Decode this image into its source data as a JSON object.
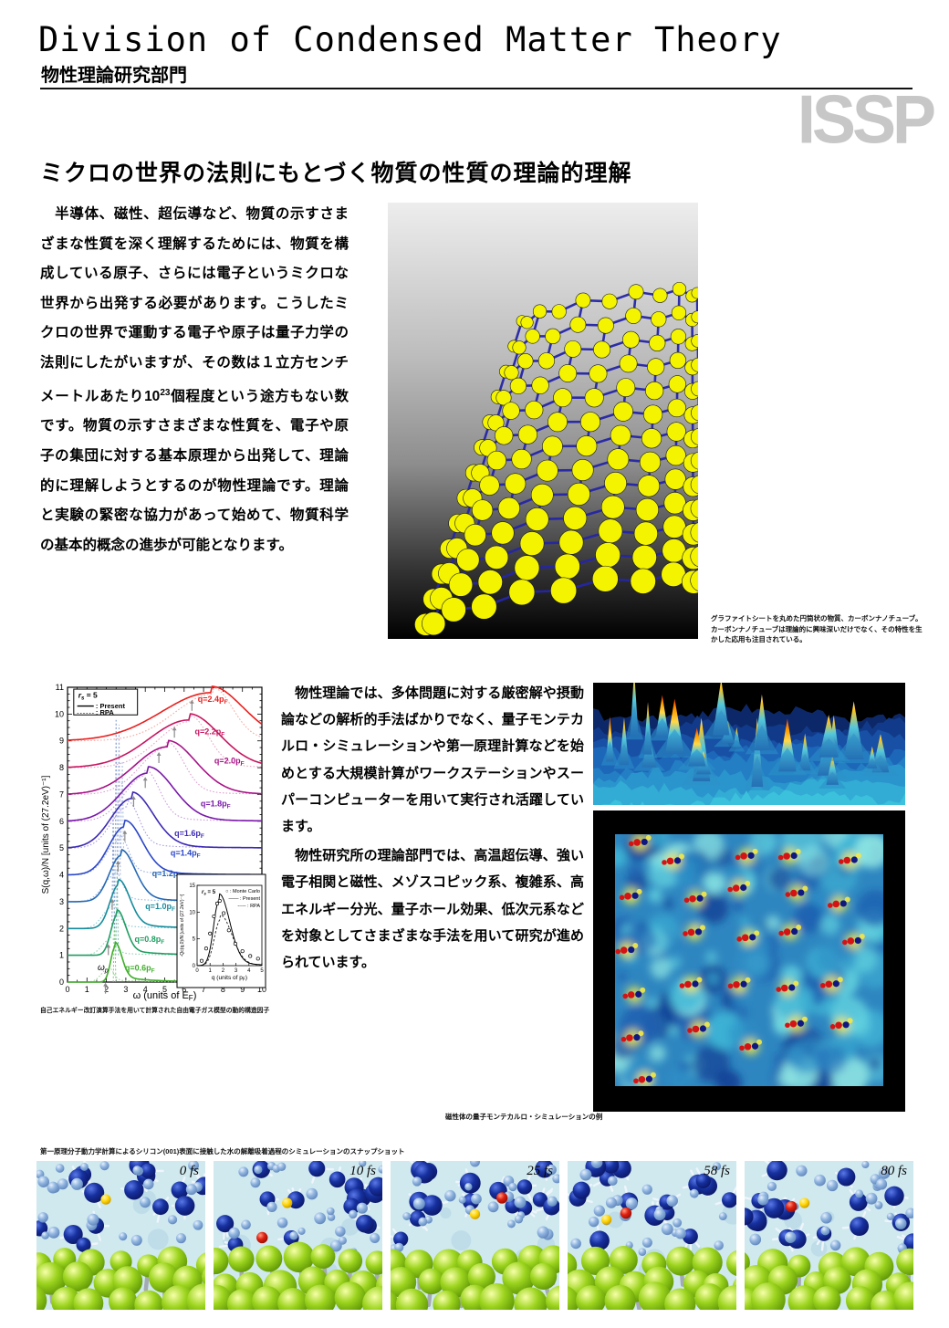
{
  "header": {
    "title_en": "Division of Condensed Matter Theory",
    "title_ja": "物性理論研究部門",
    "watermark": "ISSP"
  },
  "section_heading": "ミクロの世界の法則にもとづく物質の性質の理論的理解",
  "intro": {
    "part1": "　半導体、磁性、超伝導など、物質の示すさまざまな性質を深く理解するためには、物質を構成している原子、さらには電子というミクロな世界から出発する必要があります。こうしたミクロの世界で運動する電子や原子は量子力学の法則にしたがいますが、その数は１立方センチメートルあたり10",
    "sup": "23",
    "part2": "個程度という途方もない数です。物質の示すさまざまな性質を、電子や原子の集団に対する基本原理から出発して、理論的に理解しようとするのが物性理論です。理論と実験の緊密な協力があって始めて、物質科学の基本的概念の進歩が可能となります。"
  },
  "body2": {
    "p1": "　物性理論では、多体問題に対する厳密解や摂動論などの解析的手法ばかりでなく、量子モンテカルロ・シミュレーションや第一原理計算などを始めとする大規模計算がワークステーションやスーパーコンピューターを用いて実行され活躍しています。",
    "p2": "　物性研究所の理論部門では、高温超伝導、強い電子相関と磁性、メゾスコピック系、複雑系、高エネルギー分光、量子ホール効果、低次元系などを対象としてさまざまな手法を用いて研究が進められています。"
  },
  "captions": {
    "nanotube": "グラファイトシートを丸めた円筒状の物質、カーボンナノチューブ。カーボンナノチューブは理論的に興味深いだけでなく、その特性を生かした応用も注目されている。",
    "structure_factor": "自己エネルギー改訂演算手法を用いて計算された自由電子ガス模型の動的構造因子",
    "qmc": "磁性体の量子モンテカルロ・シミュレーションの例",
    "snapshots": "第一原理分子動力学計算によるシリコン(001)表面に接触した水の解離吸着過程のシミュレーションのスナップショット"
  },
  "snapshots": {
    "times": [
      "0 fs",
      "10 fs",
      "25 fs",
      "58 fs",
      "80 fs"
    ]
  },
  "chart_data": [
    {
      "type": "line",
      "xlabel_pre": "ω  (units of E",
      "xlabel_sub": "F",
      "xlabel_post": ")",
      "ylabel": "S(q,ω)/N  [units of (27.2eV)⁻¹]",
      "xlim": [
        0,
        10
      ],
      "ylim": [
        0,
        11
      ],
      "legend": {
        "rs_pre": "r",
        "rs_sub": "s",
        "rs_post": " = 5",
        "present": ": Present",
        "rpa": ": RPA"
      },
      "omega_p_pre": "ω",
      "omega_p_sub": "p",
      "series": [
        {
          "label": "q=0.6p",
          "sub": "F",
          "color": "#3fae2a",
          "rpa_color": "#9fd79a",
          "baseline": 0,
          "peak": 2.45,
          "height": 1.32,
          "wl": 0.32,
          "wr": 0.48,
          "rpa": {
            "peak": 2.1,
            "height": 0.5,
            "wl": 0.5,
            "wr": 0.35
          },
          "label_pos": [
            2.95,
            0.42
          ],
          "arrow_x": 1.95
        },
        {
          "label": "q=0.8p",
          "sub": "F",
          "color": "#1f9e62",
          "rpa_color": "#96d4b8",
          "baseline": 1,
          "peak": 2.55,
          "height": 1.5,
          "wl": 0.45,
          "wr": 0.62,
          "rpa": {
            "peak": 2.2,
            "height": 0.6,
            "wl": 0.6,
            "wr": 0.4
          },
          "label_pos": [
            3.45,
            1.5
          ],
          "arrow_x": 2.1
        },
        {
          "label": "q=1.0p",
          "sub": "F",
          "color": "#148c9c",
          "rpa_color": "#92ccd4",
          "baseline": 2,
          "peak": 2.62,
          "height": 1.62,
          "wl": 0.62,
          "wr": 0.8,
          "rpa": {
            "peak": 2.3,
            "height": 0.8,
            "wl": 0.7,
            "wr": 0.45
          },
          "label_pos": [
            4.0,
            2.72
          ],
          "arrow_x": 2.3
        },
        {
          "label": "q=1.2p",
          "sub": "F",
          "color": "#2568b5",
          "rpa_color": "#9fc0e4",
          "baseline": 3,
          "peak": 2.75,
          "height": 1.72,
          "wl": 0.85,
          "wr": 1.0,
          "rpa": {
            "peak": 2.45,
            "height": 1.0,
            "wl": 0.85,
            "wr": 0.5
          },
          "label_pos": [
            4.35,
            3.95
          ],
          "arrow_x": 2.6
        },
        {
          "label": "q=1.4p",
          "sub": "F",
          "color": "#2a46c8",
          "rpa_color": "#a2aee6",
          "baseline": 4,
          "peak": 2.95,
          "height": 1.8,
          "wl": 1.15,
          "wr": 1.25,
          "rpa": {
            "peak": 2.7,
            "height": 1.3,
            "wl": 1.0,
            "wr": 0.6
          },
          "label_pos": [
            5.3,
            4.72
          ],
          "arrow_x": 2.95
        },
        {
          "label": "q=1.6p",
          "sub": "F",
          "color": "#3c2ab4",
          "rpa_color": "#ab9fe0",
          "baseline": 5,
          "peak": 3.3,
          "height": 1.85,
          "wl": 1.5,
          "wr": 1.55,
          "rpa": {
            "peak": 3.1,
            "height": 1.55,
            "wl": 1.2,
            "wr": 0.8
          },
          "label_pos": [
            5.5,
            5.45
          ],
          "arrow_x": 3.4
        },
        {
          "label": "q=1.8p",
          "sub": "F",
          "color": "#7a18aa",
          "rpa_color": "#cc9fe0",
          "baseline": 6,
          "peak": 4.15,
          "height": 1.8,
          "wl": 1.9,
          "wr": 1.85,
          "rpa": {
            "peak": 4.0,
            "height": 1.7,
            "wl": 1.5,
            "wr": 1.0
          },
          "label_pos": [
            6.85,
            6.55
          ],
          "arrow_x": 4.0
        },
        {
          "label": "q=2.0p",
          "sub": "F",
          "color": "#a81387",
          "rpa_color": "#e09fd0",
          "baseline": 7,
          "peak": 5.15,
          "height": 1.78,
          "wl": 2.4,
          "wr": 2.1,
          "rpa": {
            "peak": 5.1,
            "height": 1.75,
            "wl": 1.9,
            "wr": 1.2
          },
          "label_pos": [
            7.55,
            8.15
          ],
          "arrow_x": 4.7
        },
        {
          "label": "q=2.2p",
          "sub": "F",
          "color": "#c81560",
          "rpa_color": "#eda6c4",
          "baseline": 8,
          "peak": 6.25,
          "height": 1.78,
          "wl": 2.9,
          "wr": 2.3,
          "rpa": {
            "peak": 6.3,
            "height": 1.72,
            "wl": 2.3,
            "wr": 1.3
          },
          "label_pos": [
            6.55,
            9.25
          ],
          "arrow_x": 5.5
        },
        {
          "label": "q=2.4p",
          "sub": "F",
          "color": "#e8201e",
          "rpa_color": "#f5a8a2",
          "baseline": 9,
          "peak": 7.4,
          "height": 1.8,
          "wl": 3.6,
          "wr": 2.4,
          "rpa": {
            "peak": 7.5,
            "height": 1.75,
            "wl": 2.8,
            "wr": 1.4
          },
          "label_pos": [
            6.7,
            10.45
          ],
          "arrow_x": 6.4
        }
      ],
      "spikes": [
        {
          "x": 2.42,
          "base": 0,
          "top": 2.6,
          "color": "#7cc87c"
        },
        {
          "x": 2.55,
          "base": 1,
          "top": 4.2,
          "color": "#7cbfae"
        },
        {
          "x": 2.35,
          "base": 2,
          "top": 6.35,
          "color": "#7d98cc"
        },
        {
          "x": 2.5,
          "base": 3,
          "top": 9.78,
          "color": "#8fa6d6"
        },
        {
          "x": 2.65,
          "base": 4,
          "top": 9.6,
          "color": "#9fb2da"
        },
        {
          "x": 2.82,
          "base": 5,
          "top": 8.2,
          "color": "#afc0e0"
        }
      ]
    },
    {
      "type": "line",
      "xlabel_pre": "q  (units of p",
      "xlabel_sub": "F",
      "xlabel_post": ")",
      "ylabel": "-Qc(q,0)/N  [units of (27.2eV)⁻¹]",
      "xlim": [
        0,
        5
      ],
      "ylim": [
        0,
        15
      ],
      "yticks": [
        0,
        5,
        10,
        15
      ],
      "rs_pre": "r",
      "rs_sub": "s",
      "rs_post": " = 5",
      "legend": [
        "○ : Monte Carlo",
        "—— : Present",
        "----- : RPA"
      ],
      "present": {
        "peak": 1.7,
        "height": 12.2,
        "wl": 0.6,
        "wr": 1.15
      },
      "rpa": {
        "peak": 1.8,
        "height": 8.6,
        "wl": 0.65,
        "wr": 1.25
      },
      "monte_carlo": [
        [
          0.35,
          0.9
        ],
        [
          0.7,
          3.2
        ],
        [
          1.0,
          6.0
        ],
        [
          1.3,
          9.2
        ],
        [
          1.55,
          11.6
        ],
        [
          1.75,
          12.1
        ],
        [
          2.05,
          9.8
        ],
        [
          2.45,
          6.6
        ],
        [
          2.95,
          4.1
        ],
        [
          3.5,
          2.7
        ],
        [
          4.1,
          1.8
        ],
        [
          4.7,
          1.3
        ]
      ]
    }
  ]
}
